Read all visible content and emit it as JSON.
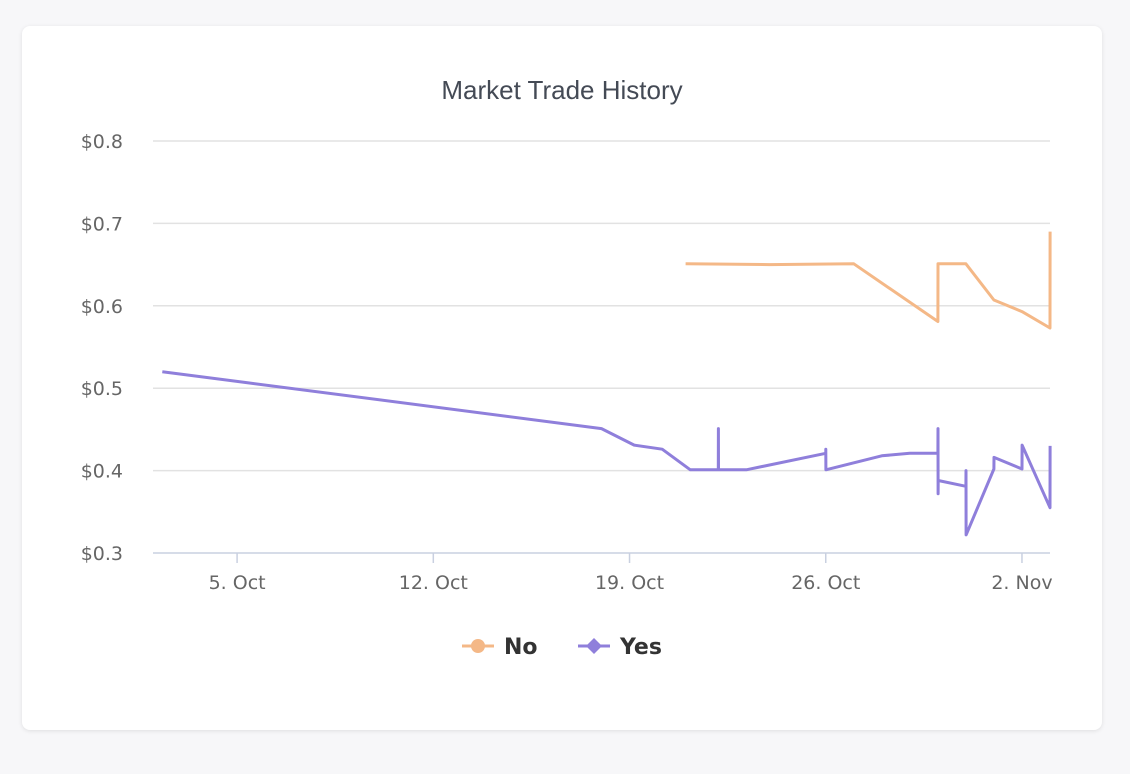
{
  "chart_data": {
    "type": "line",
    "title": "Market Trade History",
    "xlabel": "",
    "ylabel": "",
    "x_axis": {
      "type": "date",
      "min": "2020-10-02",
      "max": "2020-11-03",
      "tick_labels": [
        "5. Oct",
        "12. Oct",
        "19. Oct",
        "26. Oct",
        "2. Nov"
      ],
      "tick_dates": [
        "2020-10-05",
        "2020-10-12",
        "2020-10-19",
        "2020-10-26",
        "2020-11-02"
      ]
    },
    "y_axis": {
      "min": 0.3,
      "max": 0.8,
      "tick_labels": [
        "$0.3",
        "$0.4",
        "$0.5",
        "$0.6",
        "$0.7",
        "$0.8"
      ],
      "tick_values": [
        0.3,
        0.4,
        0.5,
        0.6,
        0.7,
        0.8
      ]
    },
    "grid": true,
    "legend_position": "bottom-center",
    "series": [
      {
        "name": "No",
        "color": "#f4b887",
        "marker": "circle",
        "points": [
          [
            "2020-10-21T00:00",
            0.651
          ],
          [
            "2020-10-24T00:00",
            0.65
          ],
          [
            "2020-10-27T00:00",
            0.651
          ],
          [
            "2020-10-30T00:00",
            0.581
          ],
          [
            "2020-10-30T00:05",
            0.651
          ],
          [
            "2020-10-31T00:00",
            0.651
          ],
          [
            "2020-11-01T00:00",
            0.607
          ],
          [
            "2020-11-02T00:00",
            0.593
          ],
          [
            "2020-11-03T00:00",
            0.573
          ],
          [
            "2020-11-03T00:05",
            0.69
          ]
        ]
      },
      {
        "name": "Yes",
        "color": "#8f7fdb",
        "marker": "diamond",
        "points": [
          [
            "2020-10-02T08:00",
            0.52
          ],
          [
            "2020-10-18T00:00",
            0.451
          ],
          [
            "2020-10-19T04:00",
            0.431
          ],
          [
            "2020-10-20T04:00",
            0.426
          ],
          [
            "2020-10-21T04:00",
            0.401
          ],
          [
            "2020-10-22T04:00",
            0.401
          ],
          [
            "2020-10-22T04:05",
            0.451
          ],
          [
            "2020-10-22T04:10",
            0.401
          ],
          [
            "2020-10-23T04:00",
            0.401
          ],
          [
            "2020-10-26T00:00",
            0.421
          ],
          [
            "2020-10-26T00:05",
            0.426
          ],
          [
            "2020-10-26T00:10",
            0.401
          ],
          [
            "2020-10-28T00:00",
            0.418
          ],
          [
            "2020-10-29T00:00",
            0.421
          ],
          [
            "2020-10-30T00:00",
            0.421
          ],
          [
            "2020-10-30T00:05",
            0.451
          ],
          [
            "2020-10-30T00:10",
            0.372
          ],
          [
            "2020-10-30T00:15",
            0.388
          ],
          [
            "2020-10-31T00:00",
            0.381
          ],
          [
            "2020-10-31T00:05",
            0.4
          ],
          [
            "2020-10-31T00:10",
            0.322
          ],
          [
            "2020-11-01T00:00",
            0.402
          ],
          [
            "2020-11-01T00:05",
            0.416
          ],
          [
            "2020-11-02T00:00",
            0.402
          ],
          [
            "2020-11-02T00:05",
            0.431
          ],
          [
            "2020-11-03T00:00",
            0.355
          ],
          [
            "2020-11-03T00:05",
            0.43
          ]
        ]
      }
    ]
  }
}
